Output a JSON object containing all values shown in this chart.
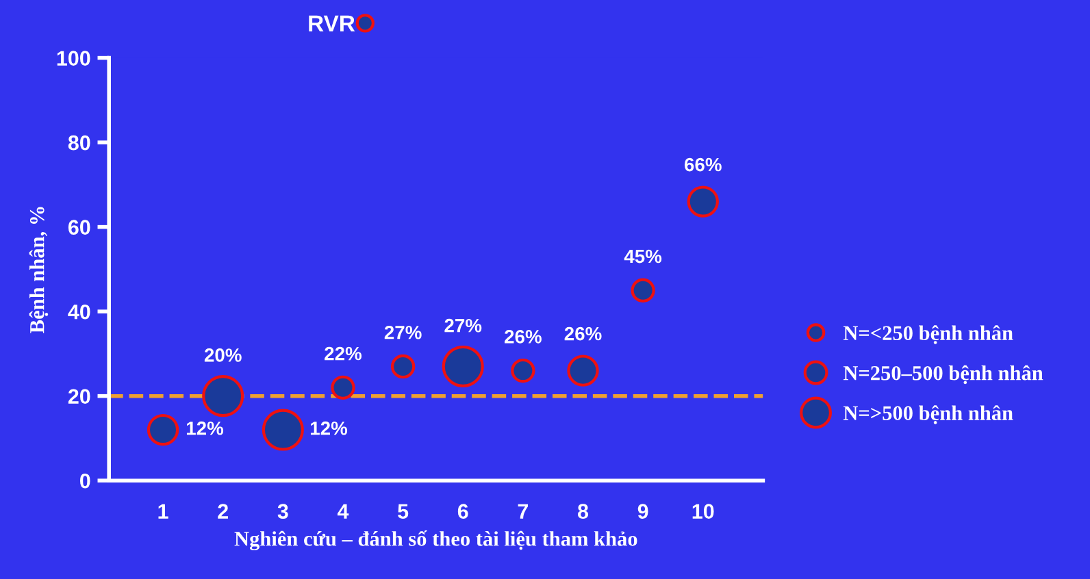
{
  "chart_data": {
    "type": "bubble",
    "title": "RVR",
    "xlabel": "Nghiên cứu – đánh số theo tài liệu tham khảo",
    "ylabel": "Bệnh nhân, %",
    "categories": [
      "1",
      "2",
      "3",
      "4",
      "5",
      "6",
      "7",
      "8",
      "9",
      "10"
    ],
    "series": [
      {
        "name": "N=<250 bệnh nhân",
        "color": "#1a3a9a",
        "x": [
          "4",
          "5",
          "7",
          "9"
        ],
        "values": [
          22,
          27,
          26,
          45
        ],
        "sizes": [
          0.3,
          0.3,
          0.3,
          0.3
        ],
        "value_labels": [
          "22%",
          "27%",
          "26%",
          "45%"
        ]
      },
      {
        "name": "N=250–500 bệnh nhân",
        "color": "#1a3a9a",
        "x": [
          "1",
          "8",
          "10"
        ],
        "values": [
          12,
          26,
          66
        ],
        "sizes": [
          0.55,
          0.55,
          0.55
        ],
        "value_labels": [
          "12%",
          "26%",
          "66%"
        ]
      },
      {
        "name": "N=>500 bệnh nhân",
        "color": "#1a3a9a",
        "x": [
          "2",
          "3",
          "6"
        ],
        "values": [
          20,
          12,
          27
        ],
        "sizes": [
          1,
          1,
          1
        ],
        "value_labels": [
          "20%",
          "12%",
          "27%"
        ]
      }
    ],
    "ylim": [
      0,
      100
    ],
    "yticks": [
      0,
      20,
      40,
      60,
      80,
      100
    ],
    "ref_lines": [
      {
        "axis": "y",
        "value": 20,
        "color": "#f0a030",
        "line_style": "dashed"
      }
    ],
    "legend": "right",
    "grid": false,
    "marker": "circle"
  }
}
